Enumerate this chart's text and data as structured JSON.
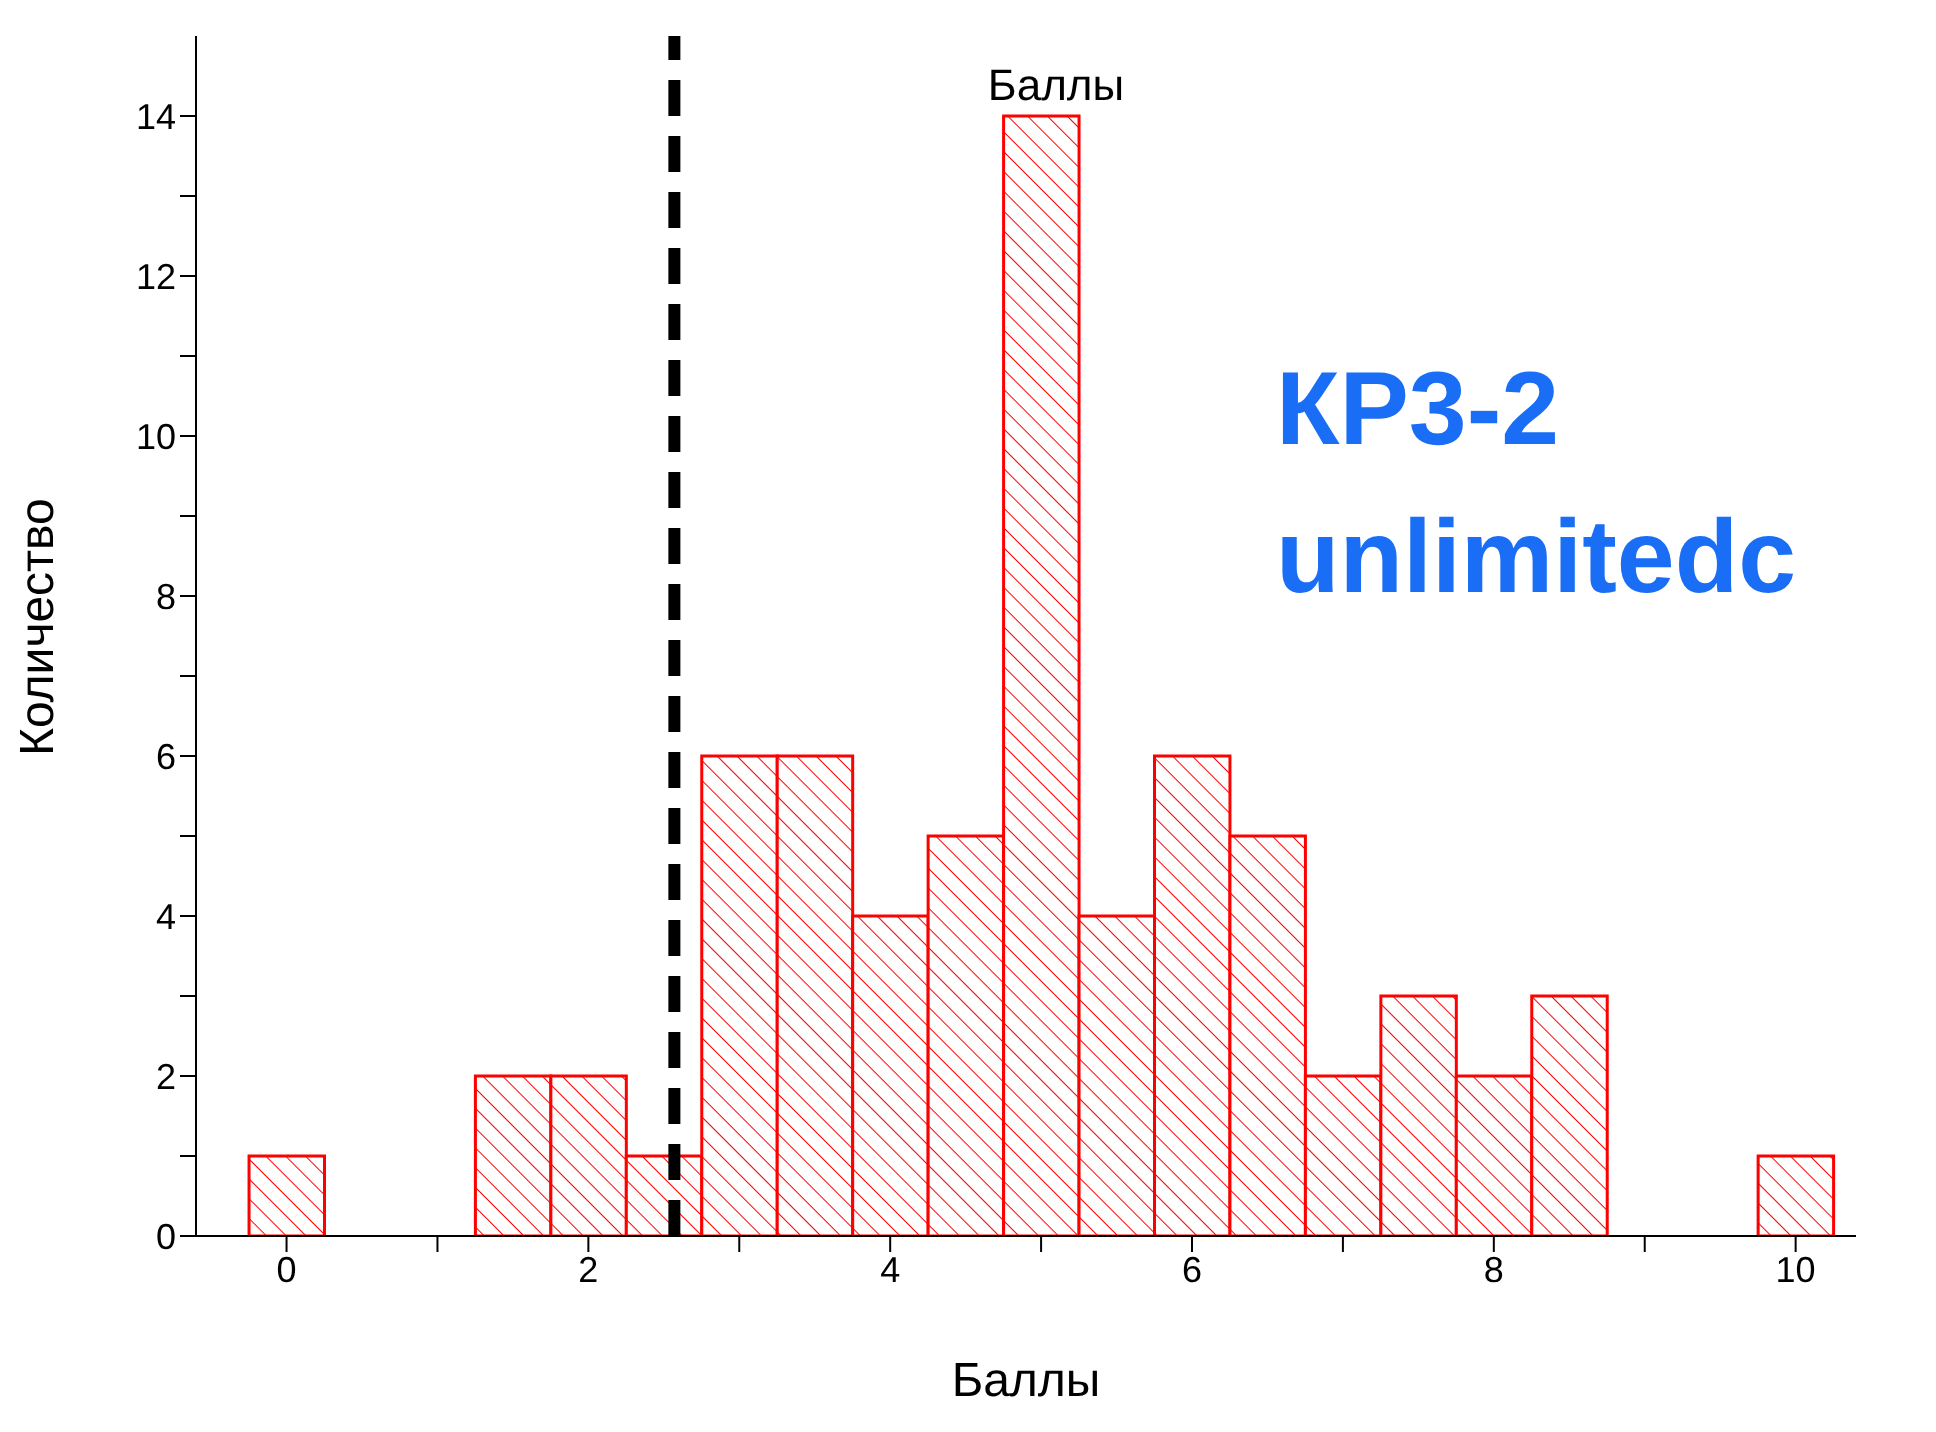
{
  "chart_data": {
    "type": "histogram",
    "title": "Баллы",
    "xlabel": "Баллы",
    "ylabel": "Количество",
    "annotations": [
      "КР3-2",
      "unlimitedc"
    ],
    "bins": [
      -0.25,
      0.25,
      0.75,
      1.25,
      1.75,
      2.25,
      2.75,
      3.25,
      3.75,
      4.25,
      4.75,
      5.25,
      5.75,
      6.25,
      6.75,
      7.25,
      7.75,
      8.25,
      8.75,
      9.25,
      9.75,
      10.25
    ],
    "values": [
      1,
      0,
      0,
      2,
      2,
      1,
      6,
      6,
      4,
      5,
      14,
      4,
      6,
      5,
      2,
      3,
      2,
      3,
      0,
      0,
      1
    ],
    "color": "#ff0000",
    "xlim": [
      -0.6,
      10.4
    ],
    "xticks": [
      0,
      {
        "value": 1,
        "label": null
      },
      2,
      {
        "value": 3,
        "label": null
      },
      4,
      {
        "value": 5,
        "label": null
      },
      6,
      {
        "value": 7,
        "label": null
      },
      8,
      {
        "value": 9,
        "label": null
      },
      10
    ],
    "ylim": [
      0,
      15
    ],
    "yticks": [
      0,
      {
        "value": 1,
        "label": null
      },
      2,
      {
        "value": 3,
        "label": null
      },
      4,
      {
        "value": 5,
        "label": null
      },
      6,
      {
        "value": 7,
        "label": null
      },
      8,
      {
        "value": 9,
        "label": null
      },
      10,
      {
        "value": 11,
        "label": null
      },
      12,
      {
        "value": 13,
        "label": null
      },
      14
    ],
    "ref_lines": [
      {
        "axis": "x",
        "value": 2.57,
        "color": "#000000",
        "line_style": "dashed"
      }
    ],
    "grid": false
  }
}
